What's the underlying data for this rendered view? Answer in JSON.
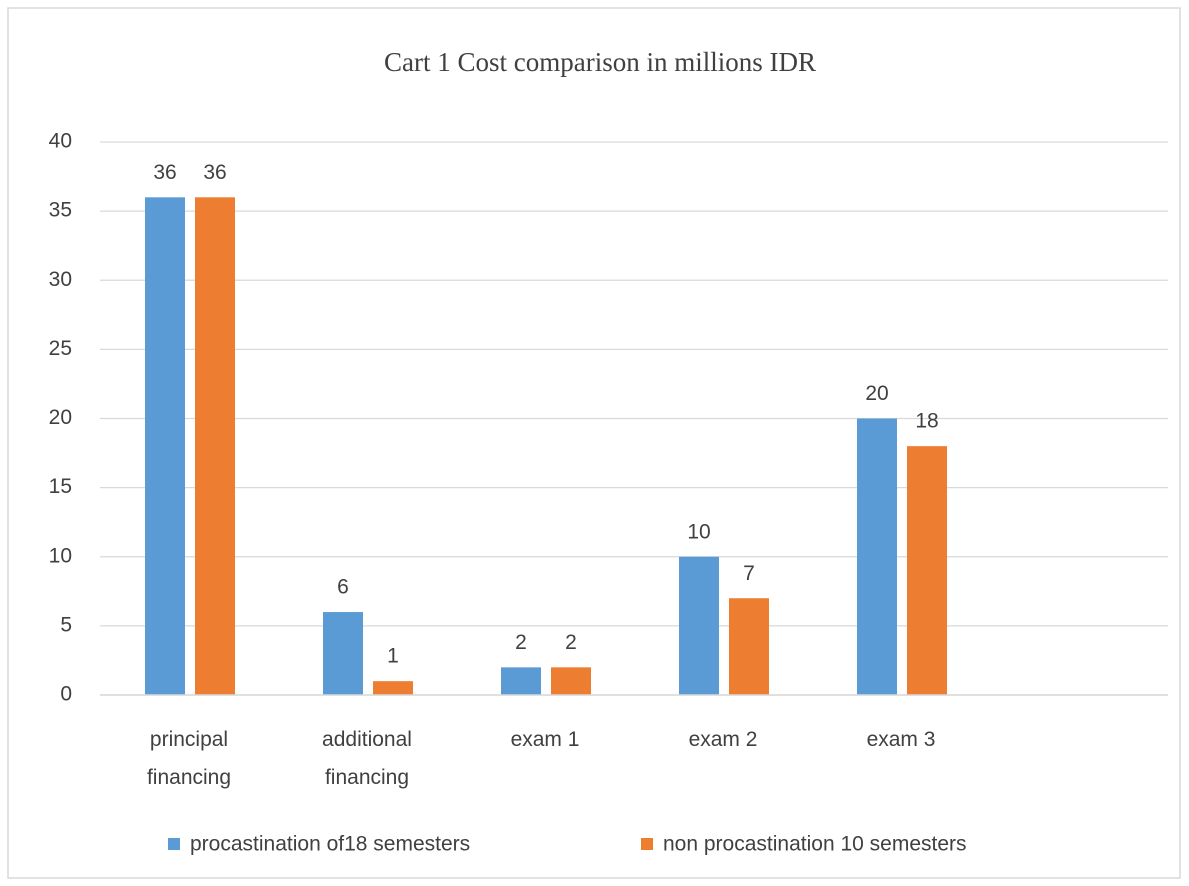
{
  "chart_data": {
    "type": "bar",
    "title": "Cart 1 Cost comparison in millions IDR",
    "categories": [
      "principal financing",
      "additional financing",
      "exam 1",
      "exam 2",
      "exam 3",
      null
    ],
    "series": [
      {
        "name": "procastination of18 semesters",
        "color": "#5b9bd5",
        "values": [
          36,
          6,
          2,
          10,
          20,
          null
        ]
      },
      {
        "name": "non procastination 10 semesters",
        "color": "#ed7d31",
        "values": [
          36,
          1,
          2,
          7,
          18,
          null
        ]
      }
    ],
    "ylim": [
      0,
      40
    ],
    "yticks": [
      0,
      5,
      10,
      15,
      20,
      25,
      30,
      35,
      40
    ],
    "grid": true,
    "legend": "bottom"
  }
}
